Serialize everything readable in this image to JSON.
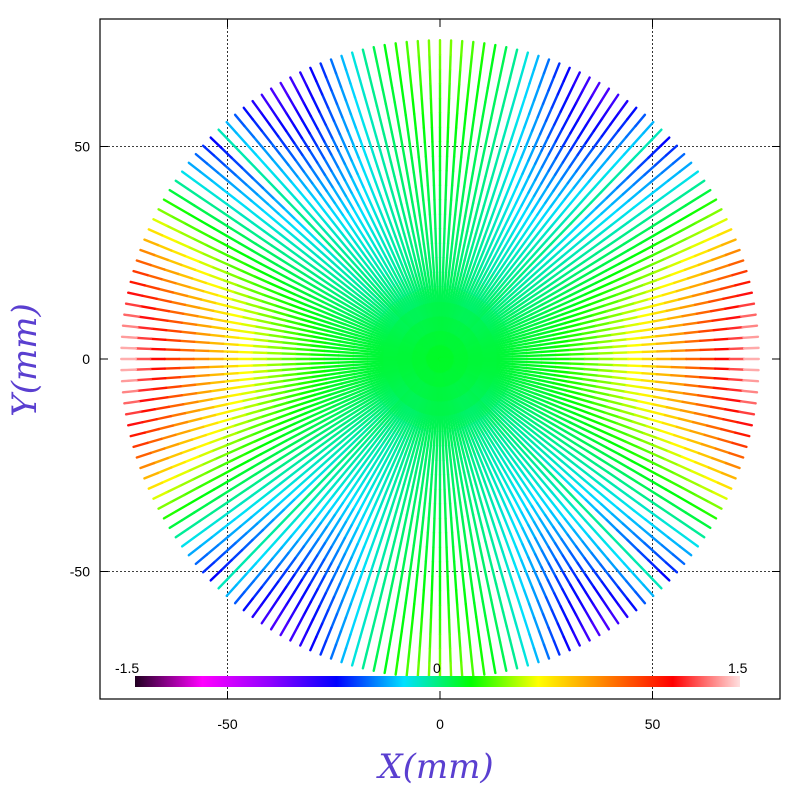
{
  "chart_data": {
    "type": "scatter",
    "title": "",
    "xlabel": "X(mm)",
    "ylabel": "Y(mm)",
    "xlim": [
      -80,
      80
    ],
    "ylim": [
      -80,
      80
    ],
    "xticks": [
      -50,
      0,
      50
    ],
    "yticks": [
      -50,
      0,
      50
    ],
    "xtick_labels": [
      "-50",
      "0",
      "50"
    ],
    "ytick_labels": [
      "-50",
      "0",
      "50"
    ],
    "grid": true,
    "gridlines_at": [
      -50,
      50
    ],
    "pattern": "radial spokes of sample points from center to edge",
    "spoke_count": 180,
    "spoke_max_radius_mm": 75,
    "colorbar": {
      "min": -1.5,
      "max": 1.5,
      "min_label": "-1.5",
      "mid_label": "0",
      "max_label": "1.5",
      "placement": "bottom-inside",
      "colors": [
        "#200020",
        "#ff00ff",
        "#9000ff",
        "#0000ff",
        "#00e0ff",
        "#00ff00",
        "#ffff00",
        "#ff8000",
        "#ff0000",
        "#ffe0e0"
      ]
    }
  }
}
